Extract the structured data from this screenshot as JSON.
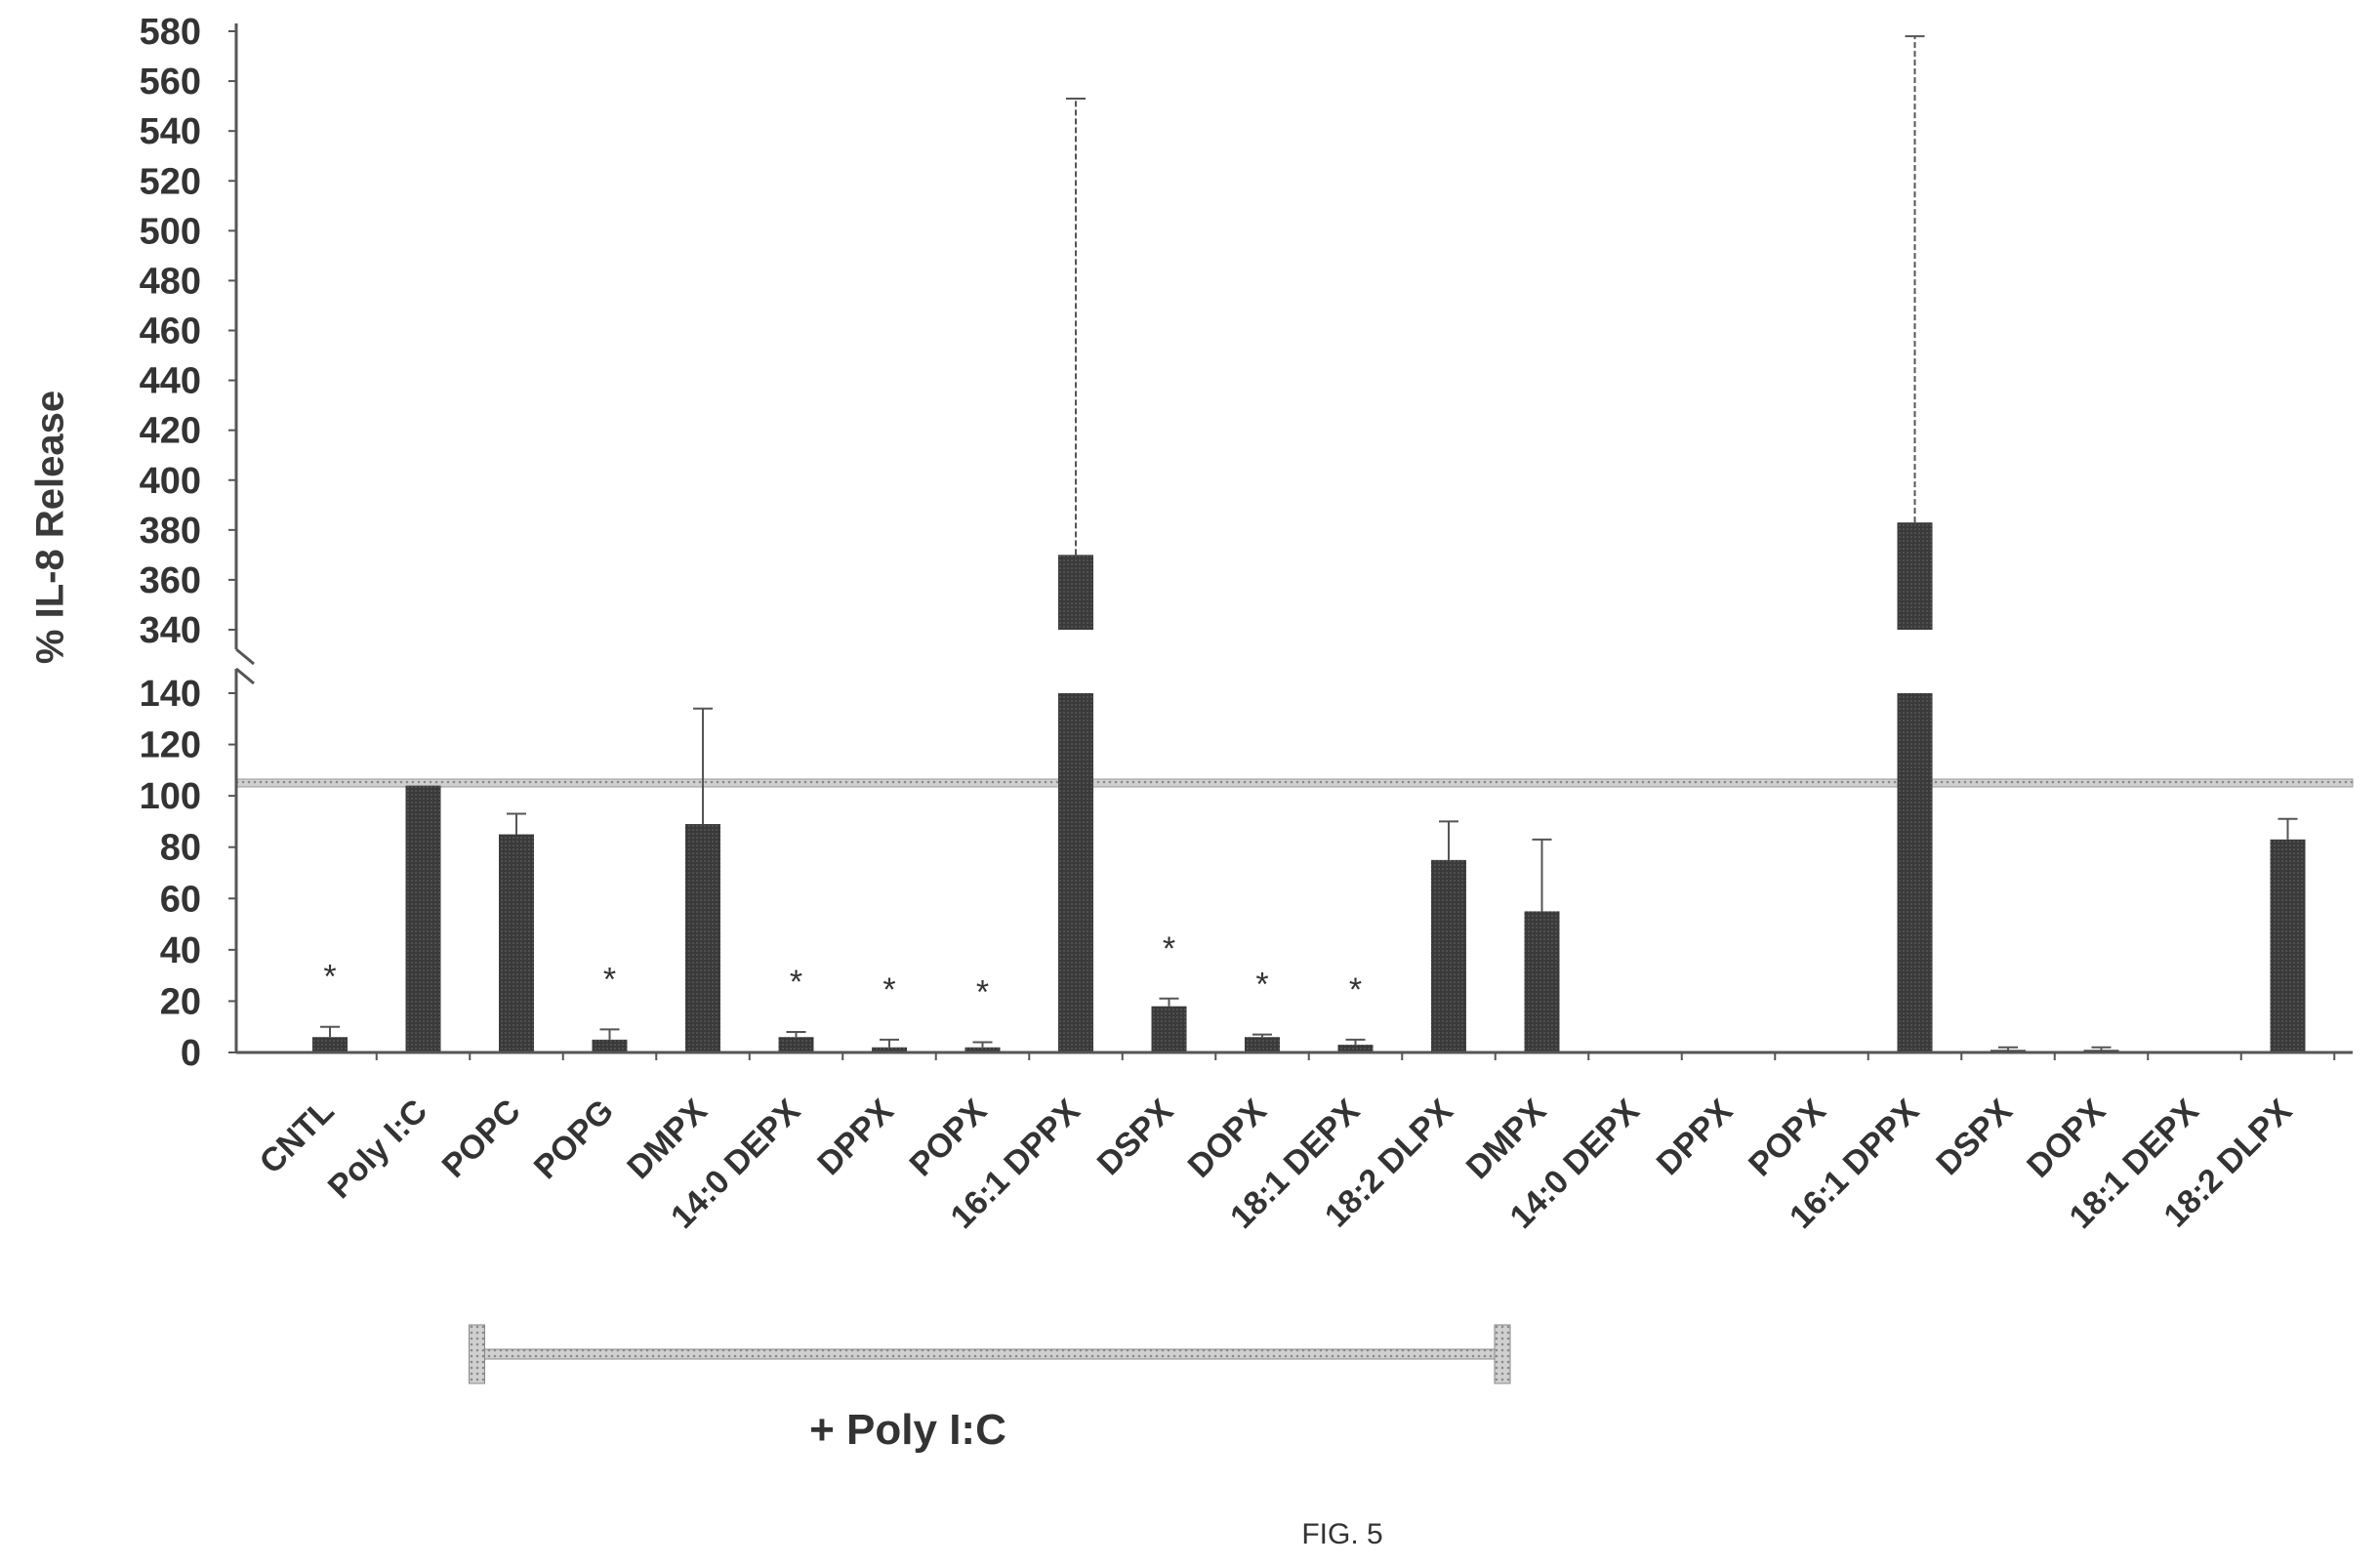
{
  "chart_data": {
    "type": "bar",
    "title": "",
    "ylabel": "% IL-8 Release",
    "ylim_lower": [
      0,
      140
    ],
    "ylim_upper": [
      340,
      580
    ],
    "axis_break_between": [
      140,
      340
    ],
    "yticks": [
      0,
      20,
      40,
      60,
      80,
      100,
      120,
      140,
      340,
      360,
      380,
      400,
      420,
      440,
      460,
      480,
      500,
      520,
      540,
      560,
      580
    ],
    "reference_line": 105,
    "categories": [
      "CNTL",
      "Poly I:C",
      "POPC",
      "POPG",
      "DMPX",
      "14:0 DEPX",
      "DPPX",
      "POPX",
      "16:1 DPPX",
      "DSPX",
      "DOPX",
      "18:1 DEPX",
      "18:2 DLPX",
      "DMPX",
      "14:0 DEPX",
      "DPPX",
      "POPX",
      "16:1 DPPX",
      "DSPX",
      "DOPX",
      "18:1 DEPX",
      "18:2 DLPX"
    ],
    "values": [
      6,
      104,
      85,
      5,
      89,
      6,
      2,
      2,
      370,
      18,
      6,
      3,
      75,
      55,
      0,
      0,
      0,
      383,
      1,
      1,
      0,
      83
    ],
    "errors": [
      4,
      0,
      8,
      4,
      45,
      2,
      3,
      2,
      183,
      3,
      1,
      2,
      15,
      28,
      0,
      0,
      0,
      195,
      1,
      1,
      0,
      8
    ],
    "significance": [
      "*",
      "",
      "",
      "*",
      "",
      "*",
      "*",
      "*",
      "",
      "*",
      "*",
      "*",
      "",
      "",
      "",
      "",
      "",
      "",
      "",
      "",
      "",
      ""
    ],
    "bracket": {
      "label": "+ Poly I:C",
      "from_category_index": 1,
      "to_category_index": 12
    },
    "grid": false,
    "colors": {
      "bar": "#2e2e2e",
      "error": "#555555",
      "axis": "#555555",
      "reference": "#9a9a9a"
    }
  },
  "figure_label": "FIG. 5"
}
